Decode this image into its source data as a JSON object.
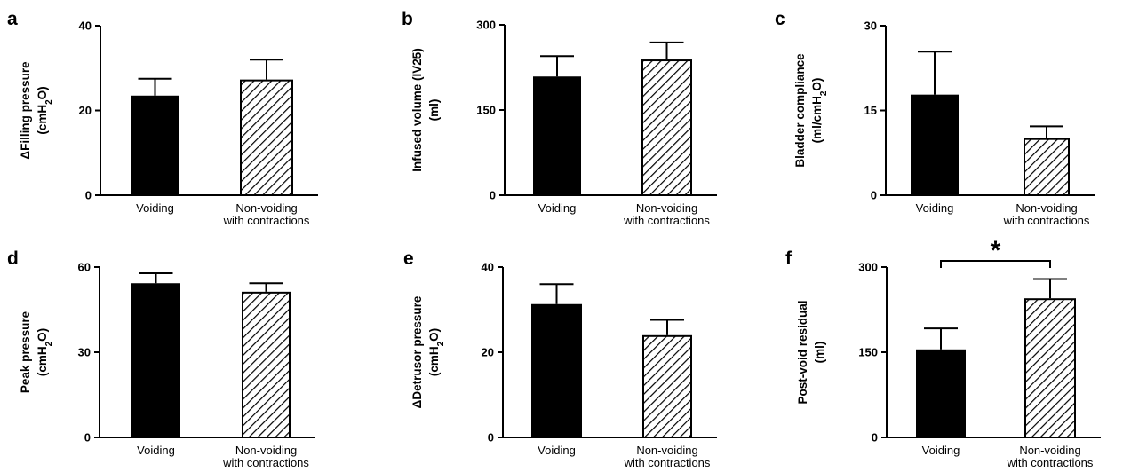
{
  "chart_data": [
    {
      "panel": "a",
      "type": "bar",
      "ylabel": "ΔFilling pressure (cmH2O)",
      "ylabel_lines": [
        [
          "ΔFilling pressure"
        ],
        [
          "(cmH",
          "2",
          "O)"
        ]
      ],
      "ylim": [
        0,
        40
      ],
      "yticks": [
        0,
        20,
        40
      ],
      "categories": [
        "Voiding",
        "Non-voiding with contractions"
      ],
      "category_lines": [
        [
          "Voiding"
        ],
        [
          "Non-voiding",
          "with contractions"
        ]
      ],
      "values": [
        23.5,
        27.3
      ],
      "errors": [
        4.0,
        4.7
      ],
      "significance": null
    },
    {
      "panel": "b",
      "type": "bar",
      "ylabel": "Infused volume (IV25) (ml)",
      "ylabel_lines": [
        [
          "Infused volume (IV25)"
        ],
        [
          "(ml)"
        ]
      ],
      "ylim": [
        0,
        300
      ],
      "yticks": [
        0,
        150,
        300
      ],
      "categories": [
        "Voiding",
        "Non-voiding with contractions"
      ],
      "category_lines": [
        [
          "Voiding"
        ],
        [
          "Non-voiding",
          "with contractions"
        ]
      ],
      "values": [
        209,
        239
      ],
      "errors": [
        36,
        30
      ],
      "significance": null
    },
    {
      "panel": "c",
      "type": "bar",
      "ylabel": "Bladder compliance (ml/cmH2O)",
      "ylabel_lines": [
        [
          "Bladder compliance"
        ],
        [
          "(ml/cmH",
          "2",
          "O)"
        ]
      ],
      "ylim": [
        0,
        30
      ],
      "yticks": [
        0,
        15,
        30
      ],
      "categories": [
        "Voiding",
        "Non-voiding with contractions"
      ],
      "category_lines": [
        [
          "Voiding"
        ],
        [
          "Non-voiding",
          "with contractions"
        ]
      ],
      "values": [
        17.8,
        10.1
      ],
      "errors": [
        7.6,
        2.1
      ],
      "significance": null
    },
    {
      "panel": "d",
      "type": "bar",
      "ylabel": "Peak pressure (cmH2O)",
      "ylabel_lines": [
        [
          "Peak pressure"
        ],
        [
          "(cmH",
          "2",
          "O)"
        ]
      ],
      "ylim": [
        0,
        60
      ],
      "yticks": [
        0,
        30,
        60
      ],
      "categories": [
        "Voiding",
        "Non-voiding with contractions"
      ],
      "category_lines": [
        [
          "Voiding"
        ],
        [
          "Non-voiding",
          "with contractions"
        ]
      ],
      "values": [
        54.3,
        51.3
      ],
      "errors": [
        3.5,
        3.0
      ],
      "significance": null
    },
    {
      "panel": "e",
      "type": "bar",
      "ylabel": "ΔDetrusor pressure (cmH2O)",
      "ylabel_lines": [
        [
          "ΔDetrusor pressure"
        ],
        [
          "(cmH",
          "2",
          "O)"
        ]
      ],
      "ylim": [
        0,
        40
      ],
      "yticks": [
        0,
        20,
        40
      ],
      "categories": [
        "Voiding",
        "Non-voiding with contractions"
      ],
      "category_lines": [
        [
          "Voiding"
        ],
        [
          "Non-voiding",
          "with contractions"
        ]
      ],
      "values": [
        31.3,
        24.0
      ],
      "errors": [
        4.7,
        3.6
      ],
      "significance": null
    },
    {
      "panel": "f",
      "type": "bar",
      "ylabel": "Post-void residual (ml)",
      "ylabel_lines": [
        [
          "Post-void residual"
        ],
        [
          "(ml)"
        ]
      ],
      "ylim": [
        0,
        300
      ],
      "yticks": [
        0,
        150,
        300
      ],
      "categories": [
        "Voiding",
        "Non-voiding with contractions"
      ],
      "category_lines": [
        [
          "Voiding"
        ],
        [
          "Non-voiding",
          "with contractions"
        ]
      ],
      "values": [
        155,
        245
      ],
      "errors": [
        37,
        34
      ],
      "significance": "*"
    }
  ],
  "style": {
    "bar_colors": [
      "#000000",
      "hatched"
    ],
    "axis_color": "#000000"
  }
}
